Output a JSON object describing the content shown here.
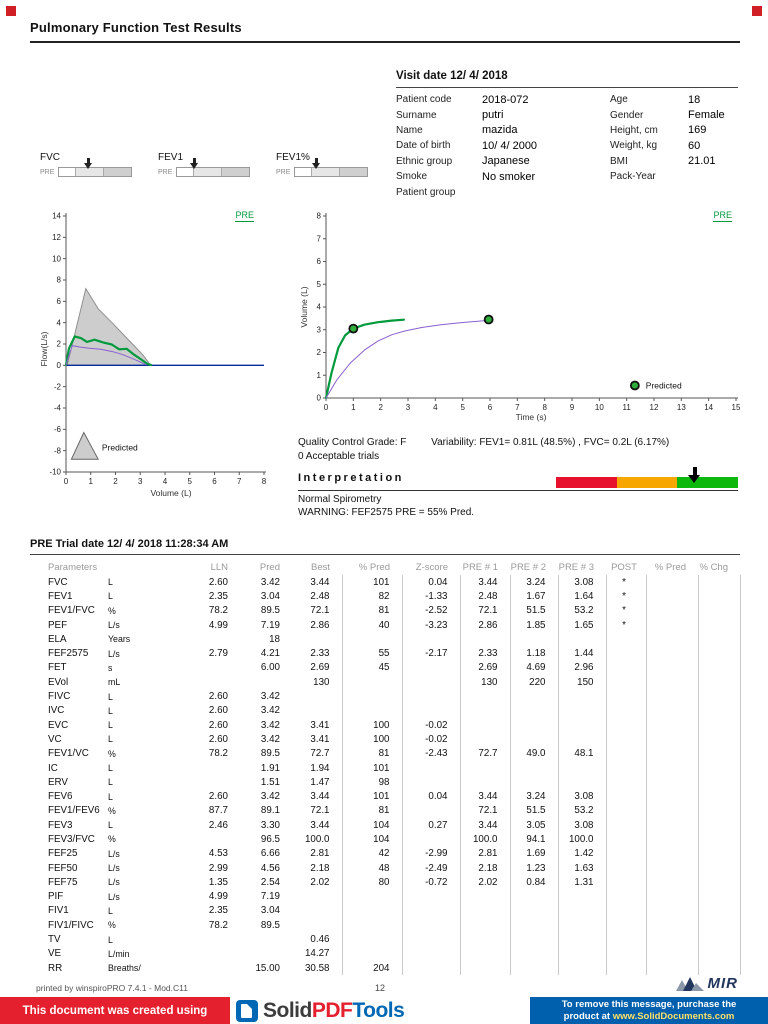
{
  "page": {
    "title": "Pulmonary Function Test Results",
    "page_number": "12",
    "printed_by": "printed by winspiroPRO 7.4.1 - Mod.C11",
    "logo_text": "MIR"
  },
  "visit": {
    "title": "Visit date 12/ 4/ 2018",
    "left": [
      {
        "label": "Patient code",
        "value": "2018-072"
      },
      {
        "label": "Surname",
        "value": "putri"
      },
      {
        "label": "Name",
        "value": "mazida"
      },
      {
        "label": "Date of birth",
        "value": "10/ 4/ 2000"
      },
      {
        "label": "Ethnic group",
        "value": "Japanese"
      },
      {
        "label": "Smoke",
        "value": "No smoker"
      },
      {
        "label": "Patient group",
        "value": ""
      }
    ],
    "right": [
      {
        "label": "Age",
        "value": "18"
      },
      {
        "label": "Gender",
        "value": "Female"
      },
      {
        "label": "Height, cm",
        "value": "169"
      },
      {
        "label": "Weight, kg",
        "value": "60"
      },
      {
        "label": "BMI",
        "value": "21.01"
      },
      {
        "label": "Pack-Year",
        "value": ""
      }
    ]
  },
  "gauges": [
    {
      "label": "FVC",
      "pre": "PRE"
    },
    {
      "label": "FEV1",
      "pre": "PRE"
    },
    {
      "label": "FEV1%",
      "pre": "PRE"
    }
  ],
  "quality": {
    "grade": "Quality Control Grade: F",
    "variability": "Variability: FEV1= 0.81L (48.5%) , FVC= 0.2L (6.17%)",
    "acceptable": "0 Acceptable trials"
  },
  "interpretation": {
    "title": "Interpretation",
    "result": "Normal Spirometry",
    "warning": "WARNING: FEF2575 PRE = 55% Pred.",
    "bar_colors": {
      "low": "#e8112d",
      "mid": "#f7a600",
      "high": "#0db80d"
    }
  },
  "trial": {
    "title": "PRE Trial date 12/ 4/ 2018   11:28:34 AM"
  },
  "table": {
    "headers": [
      "Parameters",
      "",
      "LLN",
      "Pred",
      "Best",
      "% Pred",
      "Z-score",
      "PRE # 1",
      "PRE # 2",
      "PRE # 3",
      "POST",
      "% Pred",
      "% Chg"
    ],
    "rows": [
      [
        "FVC",
        "L",
        "2.60",
        "3.42",
        "3.44",
        "101",
        "0.04",
        "3.44",
        "3.24",
        "3.08",
        "*",
        "",
        ""
      ],
      [
        "FEV1",
        "L",
        "2.35",
        "3.04",
        "2.48",
        "82",
        "-1.33",
        "2.48",
        "1.67",
        "1.64",
        "*",
        "",
        ""
      ],
      [
        "FEV1/FVC",
        "%",
        "78.2",
        "89.5",
        "72.1",
        "81",
        "-2.52",
        "72.1",
        "51.5",
        "53.2",
        "*",
        "",
        ""
      ],
      [
        "PEF",
        "L/s",
        "4.99",
        "7.19",
        "2.86",
        "40",
        "-3.23",
        "2.86",
        "1.85",
        "1.65",
        "*",
        "",
        ""
      ],
      [
        "ELA",
        "Years",
        "",
        "18",
        "",
        "",
        "",
        "",
        "",
        "",
        "",
        "",
        ""
      ],
      [
        "FEF2575",
        "L/s",
        "2.79",
        "4.21",
        "2.33",
        "55",
        "-2.17",
        "2.33",
        "1.18",
        "1.44",
        "",
        "",
        ""
      ],
      [
        "FET",
        "s",
        "",
        "6.00",
        "2.69",
        "45",
        "",
        "2.69",
        "4.69",
        "2.96",
        "",
        "",
        ""
      ],
      [
        "EVol",
        "mL",
        "",
        "",
        "130",
        "",
        "",
        "130",
        "220",
        "150",
        "",
        "",
        ""
      ],
      [
        "FIVC",
        "L",
        "2.60",
        "3.42",
        "",
        "",
        "",
        "",
        "",
        "",
        "",
        "",
        ""
      ],
      [
        "IVC",
        "L",
        "2.60",
        "3.42",
        "",
        "",
        "",
        "",
        "",
        "",
        "",
        "",
        ""
      ],
      [
        "EVC",
        "L",
        "2.60",
        "3.42",
        "3.41",
        "100",
        "-0.02",
        "",
        "",
        "",
        "",
        "",
        ""
      ],
      [
        "VC",
        "L",
        "2.60",
        "3.42",
        "3.41",
        "100",
        "-0.02",
        "",
        "",
        "",
        "",
        "",
        ""
      ],
      [
        "FEV1/VC",
        "%",
        "78.2",
        "89.5",
        "72.7",
        "81",
        "-2.43",
        "72.7",
        "49.0",
        "48.1",
        "",
        "",
        ""
      ],
      [
        "IC",
        "L",
        "",
        "1.91",
        "1.94",
        "101",
        "",
        "",
        "",
        "",
        "",
        "",
        ""
      ],
      [
        "ERV",
        "L",
        "",
        "1.51",
        "1.47",
        "98",
        "",
        "",
        "",
        "",
        "",
        "",
        ""
      ],
      [
        "FEV6",
        "L",
        "2.60",
        "3.42",
        "3.44",
        "101",
        "0.04",
        "3.44",
        "3.24",
        "3.08",
        "",
        "",
        ""
      ],
      [
        "FEV1/FEV6",
        "%",
        "87.7",
        "89.1",
        "72.1",
        "81",
        "",
        "72.1",
        "51.5",
        "53.2",
        "",
        "",
        ""
      ],
      [
        "FEV3",
        "L",
        "2.46",
        "3.30",
        "3.44",
        "104",
        "0.27",
        "3.44",
        "3.05",
        "3.08",
        "",
        "",
        ""
      ],
      [
        "FEV3/FVC",
        "%",
        "",
        "96.5",
        "100.0",
        "104",
        "",
        "100.0",
        "94.1",
        "100.0",
        "",
        "",
        ""
      ],
      [
        "FEF25",
        "L/s",
        "4.53",
        "6.66",
        "2.81",
        "42",
        "-2.99",
        "2.81",
        "1.69",
        "1.42",
        "",
        "",
        ""
      ],
      [
        "FEF50",
        "L/s",
        "2.99",
        "4.56",
        "2.18",
        "48",
        "-2.49",
        "2.18",
        "1.23",
        "1.63",
        "",
        "",
        ""
      ],
      [
        "FEF75",
        "L/s",
        "1.35",
        "2.54",
        "2.02",
        "80",
        "-0.72",
        "2.02",
        "0.84",
        "1.31",
        "",
        "",
        ""
      ],
      [
        "PIF",
        "L/s",
        "4.99",
        "7.19",
        "",
        "",
        "",
        "",
        "",
        "",
        "",
        "",
        ""
      ],
      [
        "FIV1",
        "L",
        "2.35",
        "3.04",
        "",
        "",
        "",
        "",
        "",
        "",
        "",
        "",
        ""
      ],
      [
        "FIV1/FIVC",
        "%",
        "78.2",
        "89.5",
        "",
        "",
        "",
        "",
        "",
        "",
        "",
        "",
        ""
      ],
      [
        "TV",
        "L",
        "",
        "",
        "0.46",
        "",
        "",
        "",
        "",
        "",
        "",
        "",
        ""
      ],
      [
        "VE",
        "L/min",
        "",
        "",
        "14.27",
        "",
        "",
        "",
        "",
        "",
        "",
        "",
        ""
      ],
      [
        "RR",
        "Breaths/",
        "",
        "15.00",
        "30.58",
        "204",
        "",
        "",
        "",
        "",
        "",
        "",
        ""
      ]
    ]
  },
  "banner": {
    "left_text": "This document was created using",
    "logo": {
      "solid": "Solid",
      "pdf": "PDF",
      "tools": "Tools"
    },
    "right_line1": "To remove this message, purchase the",
    "right_line2_prefix": "product at ",
    "right_link": "www.SolidDocuments.com"
  },
  "chart_data": [
    {
      "type": "line",
      "title": "Flow / Volume loop",
      "xlabel": "Volume (L)",
      "ylabel": "Flow(L/s)",
      "xlim": [
        0,
        8
      ],
      "ylim": [
        -10,
        14
      ],
      "xticks": [
        0,
        1,
        2,
        3,
        4,
        5,
        6,
        7,
        8
      ],
      "yticks": [
        -10,
        -8,
        -6,
        -4,
        -2,
        0,
        2,
        4,
        6,
        8,
        10,
        12,
        14
      ],
      "legend": "PRE",
      "zero_line": true,
      "predicted_polygon": [
        [
          0.05,
          0
        ],
        [
          0.8,
          7.19
        ],
        [
          1.3,
          5.3
        ],
        [
          1.9,
          3.9
        ],
        [
          2.6,
          2.2
        ],
        [
          3.1,
          1.0
        ],
        [
          3.42,
          0
        ]
      ],
      "legend_shape": [
        [
          0.22,
          -8.8
        ],
        [
          0.72,
          -6.3
        ],
        [
          1.3,
          -8.8
        ]
      ],
      "series": [
        {
          "name": "PRE best",
          "color": "#009a3d",
          "width": 2.2,
          "points": [
            [
              0,
              0.05
            ],
            [
              0.12,
              1.6
            ],
            [
              0.35,
              2.7
            ],
            [
              0.6,
              2.55
            ],
            [
              0.85,
              2.2
            ],
            [
              1.15,
              2.4
            ],
            [
              1.5,
              2.15
            ],
            [
              1.85,
              1.95
            ],
            [
              2.15,
              1.5
            ],
            [
              2.45,
              1.55
            ],
            [
              2.75,
              1.0
            ],
            [
              3.0,
              0.6
            ],
            [
              3.3,
              0.12
            ],
            [
              3.44,
              0.02
            ]
          ]
        },
        {
          "name": "PRE trial",
          "color": "#8a5fd0",
          "width": 1,
          "points": [
            [
              0,
              0.05
            ],
            [
              0.25,
              1.85
            ],
            [
              0.55,
              1.72
            ],
            [
              0.95,
              1.6
            ],
            [
              1.4,
              1.5
            ],
            [
              1.9,
              1.28
            ],
            [
              2.3,
              1.0
            ],
            [
              2.7,
              0.62
            ],
            [
              3.0,
              0.3
            ],
            [
              3.24,
              0.05
            ]
          ]
        }
      ],
      "annotations": [
        {
          "text": "Predicted",
          "x": 1.45,
          "y": -7.7
        }
      ]
    },
    {
      "type": "line",
      "title": "Volume / Time curve",
      "xlabel": "Time (s)",
      "ylabel": "Volume (L)",
      "xlim": [
        0,
        15
      ],
      "ylim": [
        0,
        8
      ],
      "xticks": [
        0,
        1,
        2,
        3,
        4,
        5,
        6,
        7,
        8,
        9,
        10,
        11,
        12,
        13,
        14,
        15
      ],
      "yticks": [
        0,
        1,
        2,
        3,
        4,
        5,
        6,
        7,
        8
      ],
      "legend": "PRE",
      "series": [
        {
          "name": "PRE best",
          "color": "#009a3d",
          "width": 2.2,
          "points": [
            [
              0,
              0
            ],
            [
              0.2,
              1.1
            ],
            [
              0.45,
              2.2
            ],
            [
              0.7,
              2.75
            ],
            [
              1.0,
              3.05
            ],
            [
              1.4,
              3.22
            ],
            [
              1.9,
              3.33
            ],
            [
              2.4,
              3.4
            ],
            [
              2.85,
              3.44
            ]
          ]
        },
        {
          "name": "PRE trial",
          "color": "#8a5fd0",
          "width": 1,
          "points": [
            [
              0,
              0
            ],
            [
              0.4,
              0.8
            ],
            [
              0.9,
              1.55
            ],
            [
              1.4,
              2.1
            ],
            [
              1.9,
              2.5
            ],
            [
              2.4,
              2.78
            ],
            [
              2.9,
              2.95
            ],
            [
              3.5,
              3.1
            ],
            [
              4.2,
              3.22
            ],
            [
              5.0,
              3.32
            ],
            [
              6.0,
              3.42
            ]
          ]
        }
      ],
      "markers": [
        [
          1.0,
          3.05
        ],
        [
          5.95,
          3.45
        ],
        [
          11.3,
          0.55
        ]
      ],
      "annotations": [
        {
          "text": "Predicted",
          "x": 11.7,
          "y": 0.55
        }
      ]
    }
  ]
}
